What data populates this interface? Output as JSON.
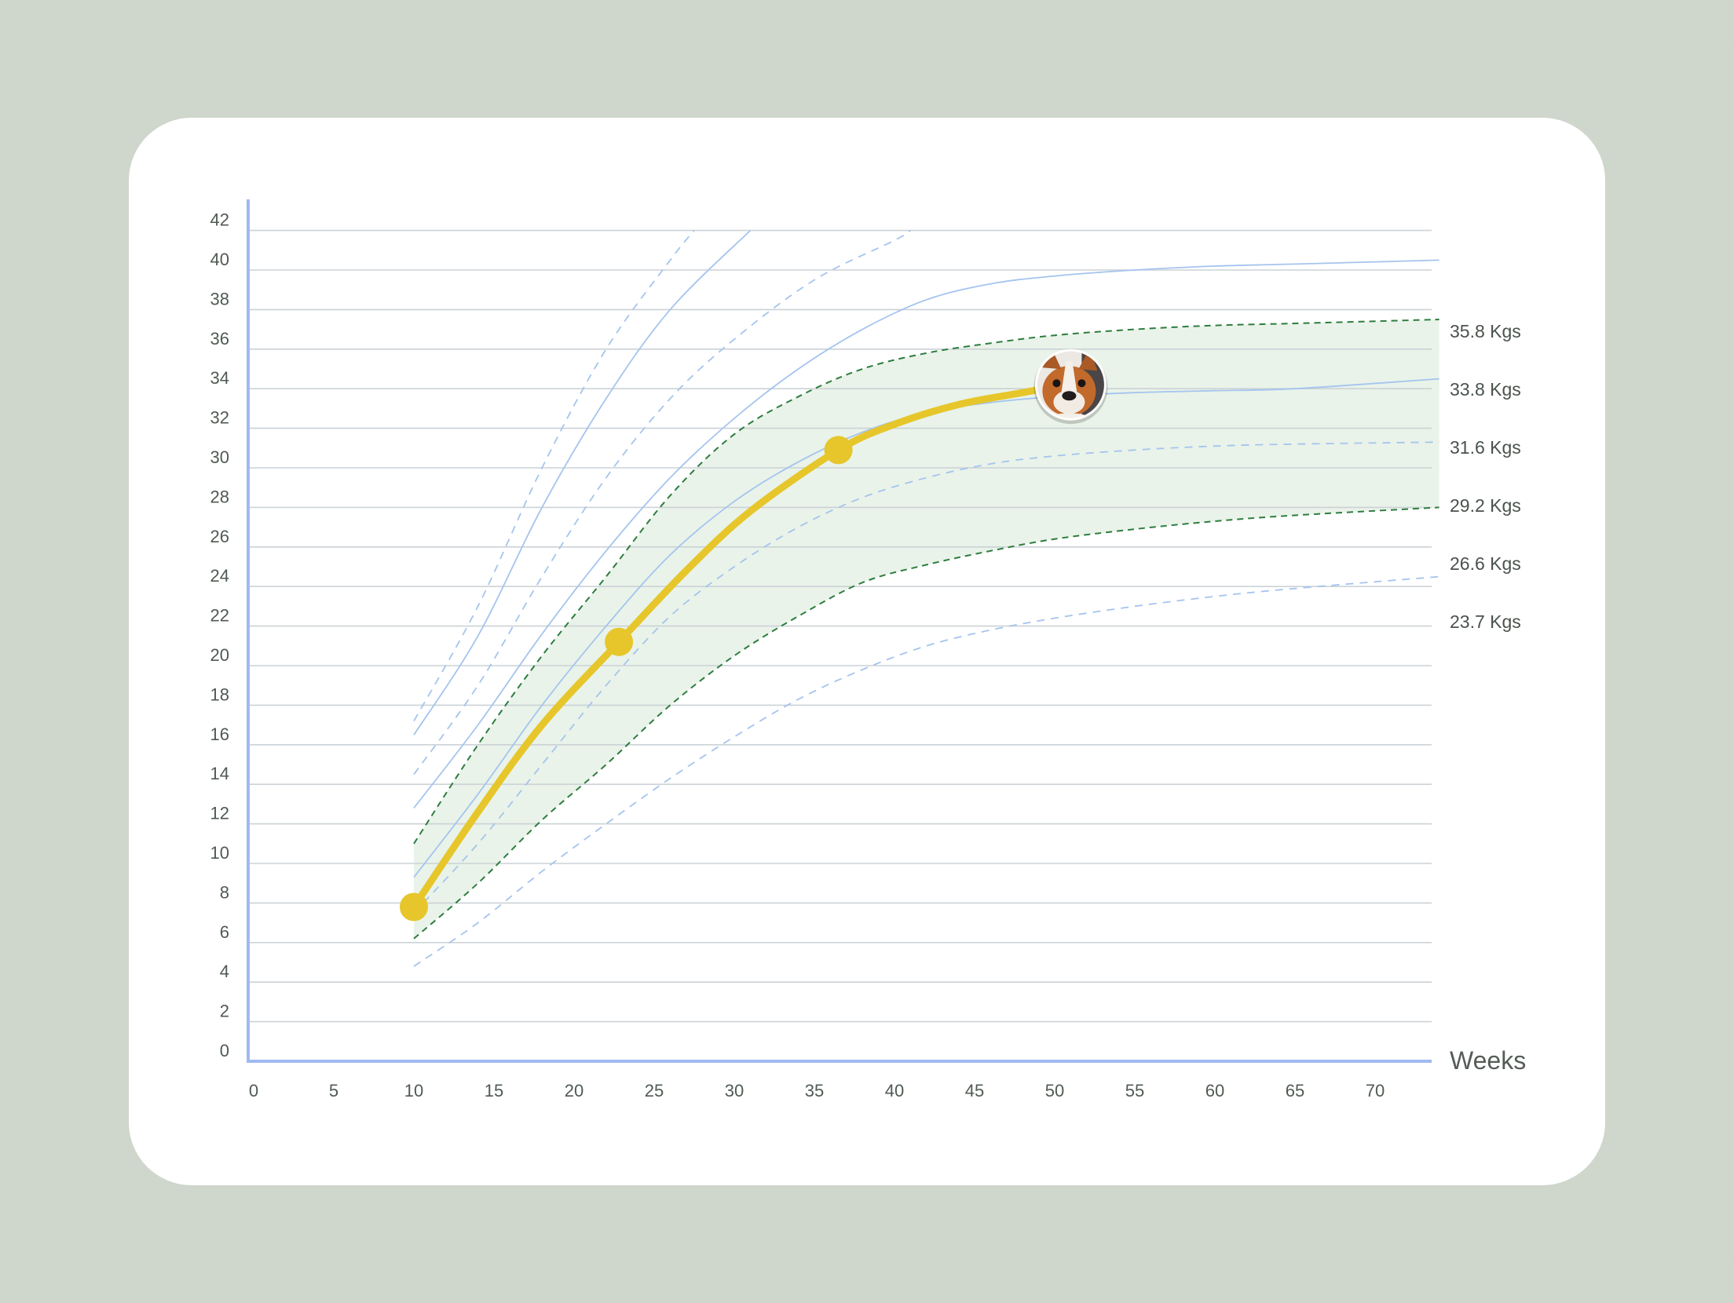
{
  "chart_data": {
    "type": "line",
    "xlabel": "Weeks",
    "ylabel": "",
    "xlim": [
      -1,
      74
    ],
    "ylim": [
      0,
      43
    ],
    "xticks": [
      0,
      5,
      10,
      15,
      20,
      25,
      30,
      35,
      40,
      45,
      50,
      55,
      60,
      65,
      70
    ],
    "yticks": [
      0,
      2,
      4,
      6,
      8,
      10,
      12,
      14,
      16,
      18,
      20,
      22,
      24,
      26,
      28,
      30,
      32,
      34,
      36,
      38,
      40,
      42
    ],
    "grid": true,
    "end_labels": [
      "35.8 Kgs",
      "33.8 Kgs",
      "31.6 Kgs",
      "29.2 Kgs",
      "26.6 Kgs",
      "23.7 Kgs"
    ],
    "band": {
      "color": "#e9f3e9",
      "upper": [
        [
          10,
          11
        ],
        [
          14,
          16
        ],
        [
          18,
          20.5
        ],
        [
          22,
          24.5
        ],
        [
          26,
          28.6
        ],
        [
          30,
          31.7
        ],
        [
          34,
          33.6
        ],
        [
          38,
          35
        ],
        [
          42,
          35.8
        ],
        [
          46,
          36.3
        ],
        [
          50,
          36.7
        ],
        [
          55,
          37
        ],
        [
          60,
          37.2
        ],
        [
          65,
          37.3
        ],
        [
          74,
          37.5
        ]
      ],
      "lower": [
        [
          10,
          6.2
        ],
        [
          14,
          9
        ],
        [
          18,
          12.2
        ],
        [
          22,
          15
        ],
        [
          26,
          18
        ],
        [
          30,
          20.5
        ],
        [
          34,
          22.5
        ],
        [
          38,
          24.2
        ],
        [
          42,
          25.1
        ],
        [
          46,
          25.8
        ],
        [
          50,
          26.4
        ],
        [
          55,
          26.9
        ],
        [
          60,
          27.3
        ],
        [
          65,
          27.6
        ],
        [
          74,
          28
        ]
      ]
    },
    "series": [
      {
        "style": "blue-dashed",
        "points": [
          [
            10,
            17.2
          ],
          [
            14,
            23
          ],
          [
            18,
            30
          ],
          [
            22,
            36
          ],
          [
            26,
            40.5
          ],
          [
            27.5,
            42
          ]
        ]
      },
      {
        "style": "blue-solid",
        "points": [
          [
            10,
            16.5
          ],
          [
            14,
            21.5
          ],
          [
            18,
            28
          ],
          [
            22,
            33.5
          ],
          [
            26,
            38
          ],
          [
            31,
            42
          ]
        ]
      },
      {
        "style": "blue-dashed",
        "points": [
          [
            10,
            14.5
          ],
          [
            14,
            19
          ],
          [
            18,
            24.5
          ],
          [
            22,
            29.5
          ],
          [
            26,
            33.5
          ],
          [
            30,
            36.5
          ],
          [
            35,
            39.5
          ],
          [
            40,
            41.5
          ],
          [
            41,
            42
          ]
        ]
      },
      {
        "style": "blue-solid",
        "points": [
          [
            10,
            12.8
          ],
          [
            14,
            17
          ],
          [
            18,
            21.6
          ],
          [
            22,
            25.8
          ],
          [
            26,
            29.5
          ],
          [
            30,
            32.5
          ],
          [
            34,
            35
          ],
          [
            38,
            37
          ],
          [
            42,
            38.5
          ],
          [
            46,
            39.3
          ],
          [
            50,
            39.7
          ],
          [
            55,
            40
          ],
          [
            60,
            40.2
          ],
          [
            65,
            40.3
          ],
          [
            74,
            40.5
          ]
        ]
      },
      {
        "style": "green-dashed",
        "points": [
          [
            10,
            11
          ],
          [
            14,
            16
          ],
          [
            18,
            20.5
          ],
          [
            22,
            24.5
          ],
          [
            26,
            28.6
          ],
          [
            30,
            31.7
          ],
          [
            34,
            33.6
          ],
          [
            38,
            35
          ],
          [
            42,
            35.8
          ],
          [
            46,
            36.3
          ],
          [
            50,
            36.7
          ],
          [
            55,
            37
          ],
          [
            60,
            37.2
          ],
          [
            65,
            37.3
          ],
          [
            74,
            37.5
          ]
        ]
      },
      {
        "style": "blue-solid",
        "points": [
          [
            10,
            9.3
          ],
          [
            14,
            13.5
          ],
          [
            18,
            18
          ],
          [
            22,
            22
          ],
          [
            26,
            25.6
          ],
          [
            30,
            28.3
          ],
          [
            34,
            30.3
          ],
          [
            38,
            31.8
          ],
          [
            42,
            32.8
          ],
          [
            46,
            33.3
          ],
          [
            50,
            33.6
          ],
          [
            55,
            33.8
          ],
          [
            60,
            33.9
          ],
          [
            65,
            34
          ],
          [
            74,
            34.5
          ]
        ]
      },
      {
        "style": "blue-dashed",
        "points": [
          [
            10,
            7.5
          ],
          [
            14,
            11
          ],
          [
            18,
            15
          ],
          [
            22,
            19
          ],
          [
            26,
            22.5
          ],
          [
            30,
            25
          ],
          [
            34,
            27
          ],
          [
            38,
            28.5
          ],
          [
            42,
            29.5
          ],
          [
            46,
            30.2
          ],
          [
            50,
            30.6
          ],
          [
            55,
            30.9
          ],
          [
            60,
            31.1
          ],
          [
            65,
            31.2
          ],
          [
            74,
            31.3
          ]
        ]
      },
      {
        "style": "green-dashed",
        "points": [
          [
            10,
            6.2
          ],
          [
            14,
            9
          ],
          [
            18,
            12.2
          ],
          [
            22,
            15
          ],
          [
            26,
            18
          ],
          [
            30,
            20.5
          ],
          [
            34,
            22.5
          ],
          [
            38,
            24.2
          ],
          [
            42,
            25.1
          ],
          [
            46,
            25.8
          ],
          [
            50,
            26.4
          ],
          [
            55,
            26.9
          ],
          [
            60,
            27.3
          ],
          [
            65,
            27.6
          ],
          [
            74,
            28
          ]
        ]
      },
      {
        "style": "blue-dashed",
        "points": [
          [
            10,
            4.8
          ],
          [
            14,
            7
          ],
          [
            18,
            9.6
          ],
          [
            22,
            12
          ],
          [
            26,
            14.3
          ],
          [
            30,
            16.4
          ],
          [
            34,
            18.3
          ],
          [
            38,
            19.8
          ],
          [
            42,
            21
          ],
          [
            46,
            21.8
          ],
          [
            50,
            22.4
          ],
          [
            55,
            23
          ],
          [
            60,
            23.5
          ],
          [
            65,
            23.9
          ],
          [
            74,
            24.5
          ]
        ]
      },
      {
        "style": "yellow-thick",
        "points": [
          [
            10,
            7.8
          ],
          [
            14,
            12.6
          ],
          [
            18,
            17
          ],
          [
            22.8,
            21.2
          ],
          [
            27,
            24.8
          ],
          [
            31,
            27.8
          ],
          [
            36.5,
            30.9
          ],
          [
            40,
            32.2
          ],
          [
            44,
            33.2
          ],
          [
            48,
            33.8
          ],
          [
            50,
            34.1
          ]
        ]
      }
    ],
    "markers": [
      [
        10,
        7.8
      ],
      [
        22.8,
        21.2
      ],
      [
        36.5,
        30.9
      ]
    ],
    "avatar_point": [
      51,
      34.2
    ],
    "colors": {
      "axis": "#9fbaf0",
      "grid": "#ccd2d6",
      "blue_curve": "#a5c4ee",
      "green_dashed": "#2e7d3f",
      "yellow": "#e6c62a",
      "band": "#e9f3e9"
    },
    "avatar_icon": "bulldog-avatar-icon"
  }
}
